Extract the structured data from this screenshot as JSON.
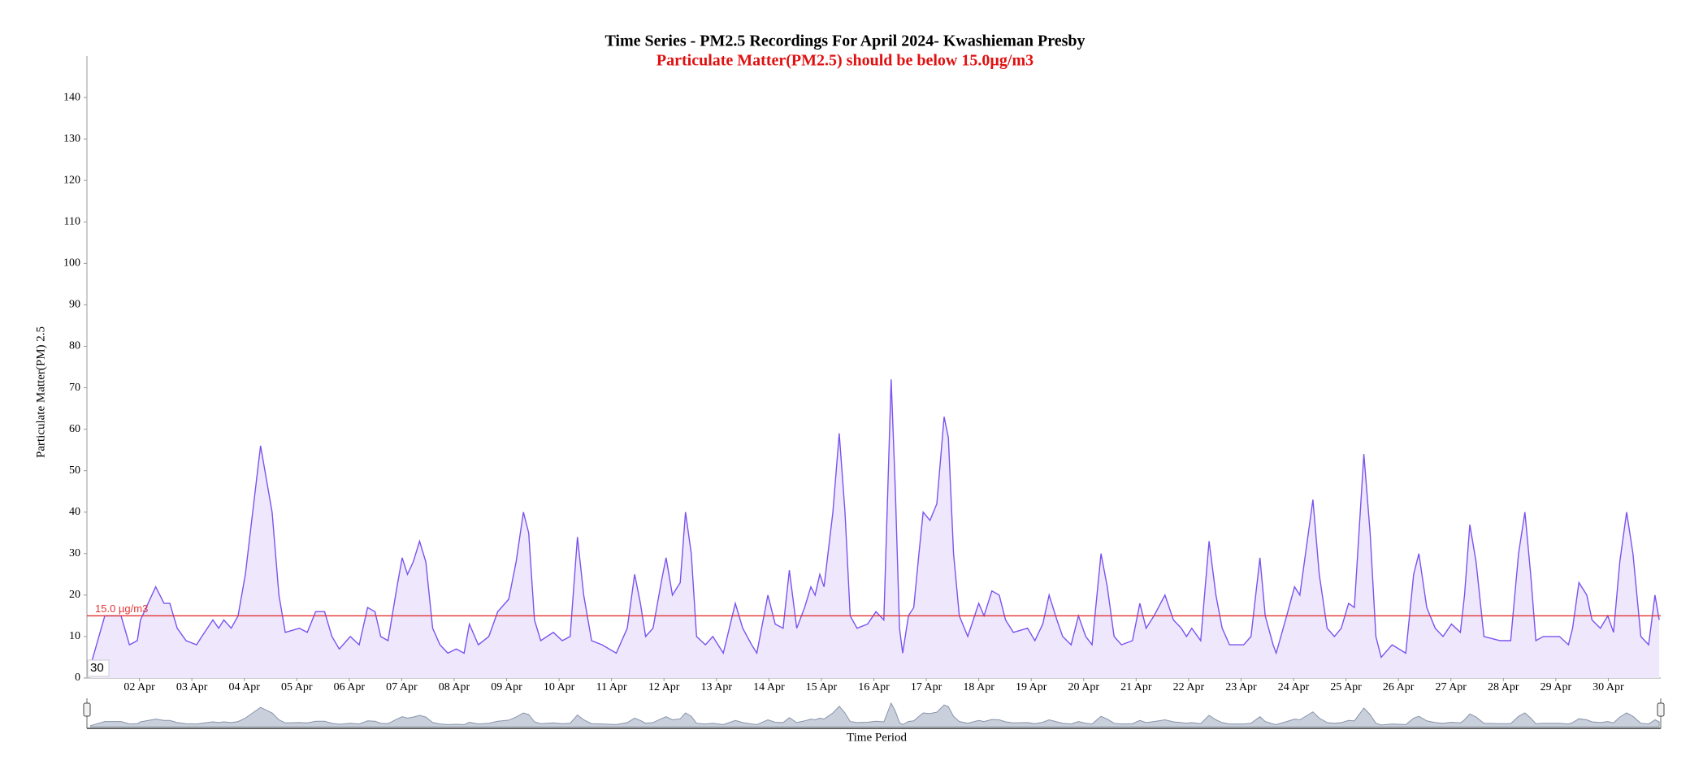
{
  "chart_data": {
    "type": "area",
    "title": "Time Series - PM2.5 Recordings For April 2024- Kwashieman Presby",
    "subtitle": "Particulate Matter(PM2.5) should be below 15.0µg/m3",
    "y_label": "Particulate Matter(PM) 2.5",
    "x_label": "Time Period",
    "color": "#7b52ee",
    "fill": "#efe8fd",
    "threshold": {
      "value": 15,
      "label": "15.0 µg/m3",
      "color": "#e33333"
    },
    "corner_label": "30",
    "grid": false,
    "xlim": [
      1,
      31
    ],
    "ylim": [
      0,
      150
    ],
    "yticks": [
      0,
      10,
      20,
      30,
      40,
      50,
      60,
      70,
      80,
      90,
      100,
      110,
      120,
      130,
      140
    ],
    "xticks": [
      {
        "value": 2,
        "label": "02 Apr"
      },
      {
        "value": 3,
        "label": "03 Apr"
      },
      {
        "value": 4,
        "label": "04 Apr"
      },
      {
        "value": 5,
        "label": "05 Apr"
      },
      {
        "value": 6,
        "label": "06 Apr"
      },
      {
        "value": 7,
        "label": "07 Apr"
      },
      {
        "value": 8,
        "label": "08 Apr"
      },
      {
        "value": 9,
        "label": "09 Apr"
      },
      {
        "value": 10,
        "label": "10 Apr"
      },
      {
        "value": 11,
        "label": "11 Apr"
      },
      {
        "value": 12,
        "label": "12 Apr"
      },
      {
        "value": 13,
        "label": "13 Apr"
      },
      {
        "value": 14,
        "label": "14 Apr"
      },
      {
        "value": 15,
        "label": "15 Apr"
      },
      {
        "value": 16,
        "label": "16 Apr"
      },
      {
        "value": 17,
        "label": "17 Apr"
      },
      {
        "value": 18,
        "label": "18 Apr"
      },
      {
        "value": 19,
        "label": "19 Apr"
      },
      {
        "value": 20,
        "label": "20 Apr"
      },
      {
        "value": 21,
        "label": "21 Apr"
      },
      {
        "value": 22,
        "label": "22 Apr"
      },
      {
        "value": 23,
        "label": "23 Apr"
      },
      {
        "value": 24,
        "label": "24 Apr"
      },
      {
        "value": 25,
        "label": "25 Apr"
      },
      {
        "value": 26,
        "label": "26 Apr"
      },
      {
        "value": 27,
        "label": "27 Apr"
      },
      {
        "value": 28,
        "label": "28 Apr"
      },
      {
        "value": 29,
        "label": "29 Apr"
      },
      {
        "value": 30,
        "label": "30 Apr"
      }
    ],
    "x": [
      1.07,
      1.34,
      1.65,
      1.81,
      1.96,
      2.02,
      2.31,
      2.47,
      2.58,
      2.72,
      2.89,
      3.09,
      3.19,
      3.4,
      3.51,
      3.61,
      3.75,
      3.88,
      4.02,
      4.16,
      4.31,
      4.53,
      4.66,
      4.78,
      5.05,
      5.2,
      5.36,
      5.53,
      5.67,
      5.81,
      6.02,
      6.19,
      6.35,
      6.49,
      6.6,
      6.74,
      6.91,
      7.01,
      7.11,
      7.22,
      7.34,
      7.46,
      7.59,
      7.73,
      7.88,
      8.04,
      8.19,
      8.29,
      8.46,
      8.66,
      8.83,
      9.04,
      9.18,
      9.32,
      9.42,
      9.53,
      9.65,
      9.89,
      10.06,
      10.21,
      10.35,
      10.47,
      10.62,
      10.82,
      11.09,
      11.3,
      11.44,
      11.55,
      11.65,
      11.79,
      11.96,
      12.04,
      12.16,
      12.31,
      12.41,
      12.52,
      12.62,
      12.79,
      12.93,
      13.13,
      13.36,
      13.5,
      13.67,
      13.77,
      13.98,
      14.12,
      14.27,
      14.39,
      14.53,
      14.68,
      14.8,
      14.88,
      14.97,
      15.05,
      15.22,
      15.34,
      15.45,
      15.55,
      15.68,
      15.88,
      16.04,
      16.19,
      16.33,
      16.41,
      16.49,
      16.55,
      16.66,
      16.76,
      16.86,
      16.94,
      17.07,
      17.2,
      17.34,
      17.42,
      17.52,
      17.63,
      17.79,
      18.0,
      18.1,
      18.25,
      18.39,
      18.51,
      18.66,
      18.93,
      19.07,
      19.22,
      19.34,
      19.49,
      19.6,
      19.76,
      19.9,
      20.04,
      20.16,
      20.33,
      20.45,
      20.58,
      20.72,
      20.93,
      21.07,
      21.19,
      21.34,
      21.55,
      21.71,
      21.86,
      21.96,
      22.06,
      22.23,
      22.39,
      22.52,
      22.64,
      22.78,
      23.05,
      23.19,
      23.36,
      23.46,
      23.61,
      23.67,
      23.87,
      24.02,
      24.12,
      24.37,
      24.49,
      24.64,
      24.78,
      24.91,
      25.05,
      25.16,
      25.34,
      25.46,
      25.57,
      25.67,
      25.88,
      26.14,
      26.29,
      26.39,
      26.54,
      26.7,
      26.85,
      27.01,
      27.18,
      27.26,
      27.36,
      27.48,
      27.63,
      27.94,
      28.14,
      28.29,
      28.41,
      28.52,
      28.62,
      28.76,
      29.07,
      29.24,
      29.32,
      29.44,
      29.59,
      29.69,
      29.85,
      29.99,
      30.1,
      30.22,
      30.35,
      30.47,
      30.62,
      30.77,
      30.89,
      30.97
    ],
    "values": [
      3,
      15,
      15,
      8,
      9,
      14,
      22,
      18,
      18,
      12,
      9,
      8,
      10,
      14,
      12,
      14,
      12,
      15,
      25,
      40,
      56,
      40,
      20,
      11,
      12,
      11,
      16,
      16,
      10,
      7,
      10,
      8,
      17,
      16,
      10,
      9,
      22,
      29,
      25,
      28,
      33,
      28,
      12,
      8,
      6,
      7,
      6,
      13,
      8,
      10,
      16,
      19,
      28,
      40,
      35,
      14,
      9,
      11,
      9,
      10,
      34,
      20,
      9,
      8,
      6,
      12,
      25,
      18,
      10,
      12,
      24,
      29,
      20,
      23,
      40,
      30,
      10,
      8,
      10,
      6,
      18,
      12,
      8,
      6,
      20,
      13,
      12,
      26,
      12,
      17,
      22,
      20,
      25,
      22,
      40,
      59,
      40,
      15,
      12,
      13,
      16,
      14,
      72,
      45,
      12,
      6,
      15,
      17,
      30,
      40,
      38,
      42,
      63,
      58,
      30,
      15,
      10,
      18,
      15,
      21,
      20,
      14,
      11,
      12,
      9,
      13,
      20,
      14,
      10,
      8,
      15,
      10,
      8,
      30,
      22,
      10,
      8,
      9,
      18,
      12,
      15,
      20,
      14,
      12,
      10,
      12,
      9,
      33,
      20,
      12,
      8,
      8,
      10,
      29,
      15,
      8,
      6,
      15,
      22,
      20,
      43,
      25,
      12,
      10,
      12,
      18,
      17,
      54,
      35,
      10,
      5,
      8,
      6,
      25,
      30,
      17,
      12,
      10,
      13,
      11,
      20,
      37,
      28,
      10,
      9,
      9,
      30,
      40,
      25,
      9,
      10,
      10,
      8,
      12,
      23,
      20,
      14,
      12,
      15,
      11,
      28,
      40,
      30,
      10,
      8,
      20,
      14
    ]
  }
}
